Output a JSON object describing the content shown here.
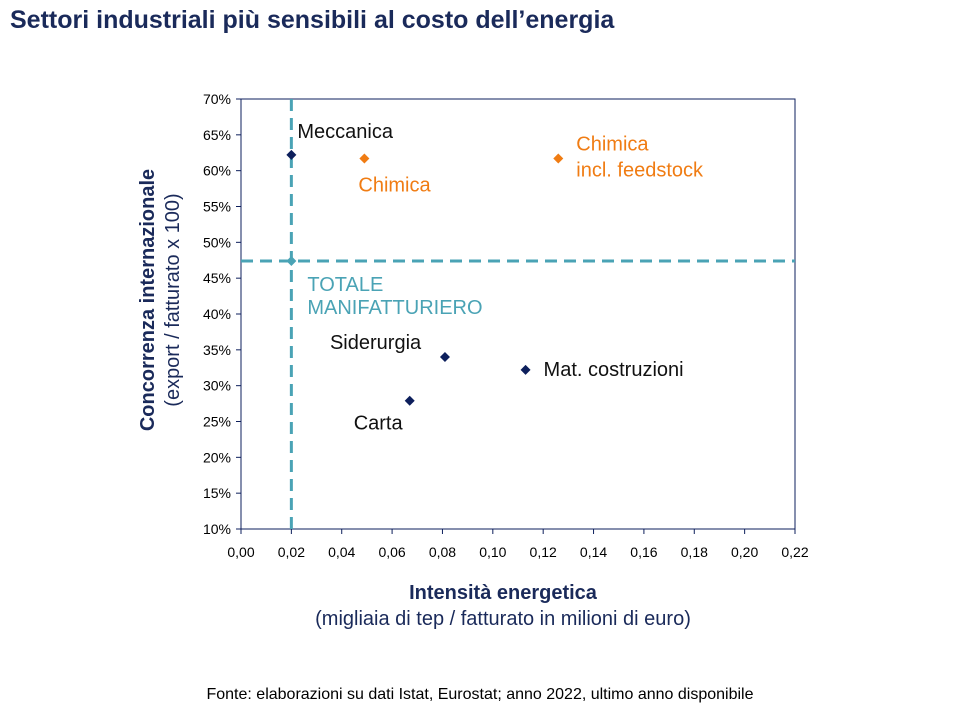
{
  "title": "Settori industriali più sensibili al costo dell’energia",
  "source": "Fonte: elaborazioni su dati Istat, Eurostat; anno 2022, ultimo anno disponibile",
  "colors": {
    "navy": "#0d1f5c",
    "orange": "#f07c13",
    "teal": "#4aa3b5",
    "title": "#1a2a5a"
  },
  "chart_data": {
    "type": "scatter",
    "xlabel": "Intensità energetica",
    "xlabel_sub": "(migliaia di tep / fatturato in milioni di euro)",
    "ylabel": "Concorrenza  internazionale",
    "ylabel_sub": "(export / fatturato x 100)",
    "xlim": [
      0,
      0.22
    ],
    "ylim": [
      10,
      70
    ],
    "x_ticks": [
      0,
      0.02,
      0.04,
      0.06,
      0.08,
      0.1,
      0.12,
      0.14,
      0.16,
      0.18,
      0.2,
      0.22
    ],
    "x_tick_labels": [
      "0,00",
      "0,02",
      "0,04",
      "0,06",
      "0,08",
      "0,10",
      "0,12",
      "0,14",
      "0,16",
      "0,18",
      "0,20",
      "0,22"
    ],
    "y_ticks": [
      10,
      15,
      20,
      25,
      30,
      35,
      40,
      45,
      50,
      55,
      60,
      65,
      70
    ],
    "y_tick_labels": [
      "10%",
      "15%",
      "20%",
      "25%",
      "30%",
      "35%",
      "40%",
      "45%",
      "50%",
      "55%",
      "60%",
      "65%",
      "70%"
    ],
    "points": [
      {
        "name": "Meccanica",
        "x": 0.02,
        "y": 62.2,
        "color": "navy",
        "label": [
          "Meccanica"
        ],
        "label_pos": "upper-right"
      },
      {
        "name": "Chimica",
        "x": 0.049,
        "y": 61.7,
        "color": "orange",
        "label": [
          "Chimica"
        ],
        "label_pos": "below"
      },
      {
        "name": "Chimica incl. feedstock",
        "x": 0.126,
        "y": 61.7,
        "color": "orange",
        "label": [
          "Chimica",
          "incl. feedstock"
        ],
        "label_pos": "right"
      },
      {
        "name": "Siderurgia",
        "x": 0.081,
        "y": 34.0,
        "color": "navy",
        "label": [
          "Siderurgia"
        ],
        "label_pos": "upper-left"
      },
      {
        "name": "Mat. costruzioni",
        "x": 0.113,
        "y": 32.2,
        "color": "navy",
        "label": [
          "Mat. costruzioni"
        ],
        "label_pos": "right"
      },
      {
        "name": "Carta",
        "x": 0.067,
        "y": 27.9,
        "color": "navy",
        "label": [
          "Carta"
        ],
        "label_pos": "lower-left"
      }
    ],
    "reference": {
      "name": "Totale manifatturiero",
      "x": 0.02,
      "y": 47.4,
      "color": "teal",
      "label": [
        "TOTALE",
        "MANIFATTURIERO"
      ],
      "label_pos": "lower-right"
    }
  }
}
